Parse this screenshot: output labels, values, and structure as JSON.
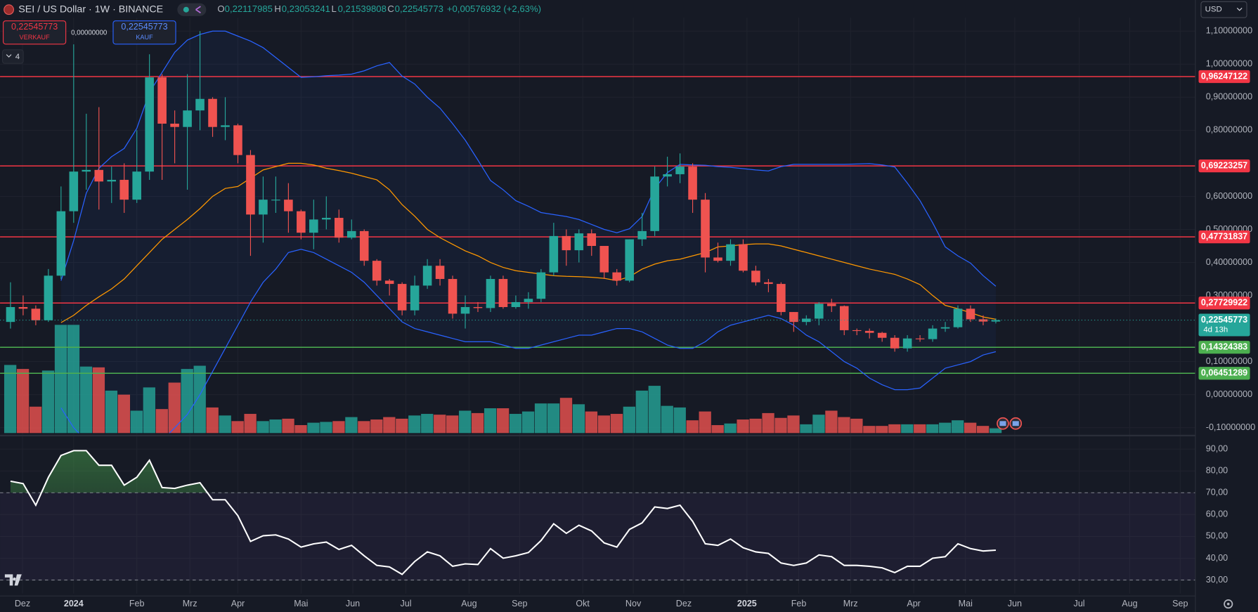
{
  "header": {
    "symbol": "SEI / US Dollar · 1W · BINANCE",
    "open_key": "O",
    "open": "0,22117985",
    "high_key": "H",
    "high": "0,23053241",
    "low_key": "L",
    "low": "0,21539808",
    "close_key": "C",
    "close": "0,22545773",
    "change": "+0,00576932 (+2,63%)"
  },
  "trade": {
    "sell_price": "0,22545773",
    "sell": "VERKAUF",
    "spread": "0,00000000",
    "buy_price": "0,22545773",
    "buy": "KAUF"
  },
  "indicators_count": "4",
  "currency": "USD",
  "chart_data": {
    "type": "candlestick",
    "up_color": "#26a69a",
    "down_color": "#ef5350",
    "open": [
      0.22,
      0.265,
      0.26,
      0.225,
      0.36,
      0.555,
      0.675,
      0.68,
      0.645,
      0.65,
      0.59,
      0.675,
      0.96,
      0.82,
      0.81,
      0.86,
      0.895,
      0.81,
      0.815,
      0.725,
      0.545,
      0.59,
      0.59,
      0.555,
      0.49,
      0.53,
      0.535,
      0.475,
      0.495,
      0.405,
      0.345,
      0.335,
      0.255,
      0.33,
      0.39,
      0.35,
      0.245,
      0.265,
      0.262,
      0.35,
      0.265,
      0.28,
      0.29,
      0.37,
      0.48,
      0.437,
      0.488,
      0.45,
      0.37,
      0.345,
      0.47,
      0.495,
      0.66,
      0.667,
      0.69,
      0.59,
      0.415,
      0.405,
      0.455,
      0.375,
      0.34,
      0.335,
      0.25,
      0.22,
      0.23,
      0.275,
      0.268,
      0.195,
      0.193,
      0.187,
      0.172,
      0.14,
      0.17,
      0.168,
      0.2,
      0.204,
      0.26,
      0.228,
      0.22117985
    ],
    "high": [
      0.34,
      0.3,
      0.27,
      0.38,
      0.63,
      1.06,
      0.85,
      0.87,
      0.69,
      0.7,
      0.8,
      1.03,
      0.97,
      0.86,
      0.97,
      1.1,
      0.9,
      0.9,
      0.82,
      0.74,
      0.66,
      0.66,
      0.64,
      0.56,
      0.59,
      0.6,
      0.56,
      0.53,
      0.5,
      0.41,
      0.35,
      0.34,
      0.36,
      0.41,
      0.41,
      0.36,
      0.3,
      0.28,
      0.36,
      0.36,
      0.3,
      0.31,
      0.38,
      0.52,
      0.5,
      0.5,
      0.5,
      0.45,
      0.38,
      0.47,
      0.55,
      0.69,
      0.72,
      0.73,
      0.7,
      0.61,
      0.46,
      0.47,
      0.47,
      0.39,
      0.35,
      0.34,
      0.25,
      0.24,
      0.28,
      0.29,
      0.27,
      0.2,
      0.2,
      0.19,
      0.18,
      0.18,
      0.18,
      0.21,
      0.22,
      0.27,
      0.27,
      0.24,
      0.23053241
    ],
    "low": [
      0.2,
      0.24,
      0.21,
      0.22,
      0.35,
      0.52,
      0.62,
      0.56,
      0.58,
      0.55,
      0.58,
      0.65,
      0.65,
      0.7,
      0.62,
      0.8,
      0.78,
      0.77,
      0.7,
      0.42,
      0.46,
      0.55,
      0.49,
      0.47,
      0.44,
      0.5,
      0.46,
      0.47,
      0.39,
      0.33,
      0.3,
      0.24,
      0.24,
      0.32,
      0.33,
      0.23,
      0.2,
      0.25,
      0.25,
      0.26,
      0.26,
      0.26,
      0.28,
      0.36,
      0.39,
      0.4,
      0.42,
      0.35,
      0.33,
      0.34,
      0.45,
      0.48,
      0.63,
      0.64,
      0.55,
      0.37,
      0.4,
      0.39,
      0.37,
      0.33,
      0.31,
      0.24,
      0.19,
      0.21,
      0.21,
      0.25,
      0.18,
      0.18,
      0.17,
      0.16,
      0.13,
      0.13,
      0.16,
      0.16,
      0.19,
      0.2,
      0.22,
      0.21,
      0.21539808
    ],
    "close": [
      0.265,
      0.26,
      0.225,
      0.36,
      0.555,
      0.675,
      0.68,
      0.645,
      0.65,
      0.59,
      0.675,
      0.96,
      0.82,
      0.81,
      0.86,
      0.895,
      0.81,
      0.815,
      0.725,
      0.545,
      0.59,
      0.59,
      0.555,
      0.49,
      0.53,
      0.535,
      0.475,
      0.495,
      0.405,
      0.345,
      0.335,
      0.255,
      0.33,
      0.39,
      0.35,
      0.245,
      0.265,
      0.262,
      0.35,
      0.265,
      0.28,
      0.29,
      0.37,
      0.48,
      0.437,
      0.488,
      0.45,
      0.37,
      0.345,
      0.47,
      0.495,
      0.66,
      0.667,
      0.69,
      0.59,
      0.415,
      0.405,
      0.455,
      0.375,
      0.34,
      0.335,
      0.25,
      0.22,
      0.23,
      0.275,
      0.268,
      0.195,
      0.193,
      0.187,
      0.172,
      0.14,
      0.17,
      0.168,
      0.2,
      0.204,
      0.26,
      0.228,
      0.22117985,
      0.22545773
    ],
    "volume": [
      85,
      80,
      33,
      78,
      135,
      135,
      83,
      82,
      53,
      48,
      28,
      57,
      30,
      63,
      80,
      84,
      32,
      22,
      15,
      24,
      15,
      17,
      18,
      10,
      13,
      14,
      15,
      20,
      15,
      17,
      20,
      18,
      22,
      24,
      23,
      22,
      28,
      25,
      31,
      31,
      24,
      27,
      37,
      37,
      44,
      36,
      27,
      22,
      24,
      33,
      53,
      59,
      34,
      32,
      16,
      27,
      10,
      12,
      17,
      18,
      25,
      19,
      22,
      11,
      23,
      28,
      20,
      18,
      9,
      9,
      11,
      11,
      11,
      11,
      13,
      16,
      13,
      9,
      6
    ],
    "bb_color": "#2962ff",
    "bb_middle_color": "#ff9800",
    "bb_upper": [
      null,
      null,
      null,
      null,
      0.345,
      0.466,
      0.61,
      0.685,
      0.72,
      0.745,
      0.806,
      0.915,
      0.975,
      1.036,
      1.073,
      1.09,
      1.1,
      1.1,
      1.085,
      1.07,
      1.05,
      1.02,
      0.99,
      0.96,
      0.962,
      0.965,
      0.967,
      0.97,
      0.98,
      0.995,
      1.005,
      0.964,
      0.94,
      0.9,
      0.867,
      0.82,
      0.77,
      0.71,
      0.648,
      0.62,
      0.587,
      0.57,
      0.551,
      0.545,
      0.539,
      0.53,
      0.515,
      0.5,
      0.49,
      0.502,
      0.539,
      0.624,
      0.672,
      0.697,
      0.695,
      0.694,
      0.69,
      0.688,
      0.684,
      0.68,
      0.677,
      0.69,
      0.697,
      0.697,
      0.697,
      0.697,
      0.697,
      0.698,
      0.699,
      0.695,
      0.689,
      0.64,
      0.587,
      0.52,
      0.447,
      0.42,
      0.398,
      0.36,
      0.328
    ],
    "bb_middle": [
      null,
      null,
      null,
      null,
      0.218,
      0.24,
      0.27,
      0.296,
      0.32,
      0.35,
      0.39,
      0.43,
      0.47,
      0.5,
      0.53,
      0.563,
      0.6,
      0.624,
      0.63,
      0.655,
      0.68,
      0.69,
      0.7,
      0.7,
      0.695,
      0.685,
      0.678,
      0.67,
      0.66,
      0.65,
      0.62,
      0.575,
      0.54,
      0.5,
      0.475,
      0.455,
      0.435,
      0.42,
      0.4,
      0.385,
      0.375,
      0.37,
      0.365,
      0.36,
      0.358,
      0.357,
      0.355,
      0.352,
      0.345,
      0.357,
      0.38,
      0.395,
      0.405,
      0.41,
      0.42,
      0.43,
      0.447,
      0.45,
      0.454,
      0.456,
      0.456,
      0.45,
      0.44,
      0.43,
      0.42,
      0.41,
      0.4,
      0.39,
      0.38,
      0.372,
      0.364,
      0.35,
      0.333,
      0.3,
      0.27,
      0.26,
      0.248,
      0.235,
      0.228
    ],
    "bb_lower": [
      null,
      null,
      null,
      null,
      -0.04,
      -0.1,
      -0.14,
      -0.16,
      -0.17,
      -0.17,
      -0.16,
      -0.16,
      -0.14,
      -0.1,
      -0.06,
      0,
      0.07,
      0.14,
      0.21,
      0.28,
      0.34,
      0.38,
      0.43,
      0.44,
      0.43,
      0.41,
      0.39,
      0.37,
      0.34,
      0.3,
      0.26,
      0.22,
      0.2,
      0.19,
      0.18,
      0.17,
      0.16,
      0.16,
      0.16,
      0.15,
      0.14,
      0.14,
      0.15,
      0.16,
      0.17,
      0.18,
      0.18,
      0.19,
      0.2,
      0.2,
      0.19,
      0.17,
      0.15,
      0.14,
      0.14,
      0.16,
      0.19,
      0.21,
      0.22,
      0.23,
      0.24,
      0.23,
      0.21,
      0.18,
      0.16,
      0.13,
      0.1,
      0.08,
      0.05,
      0.03,
      0.015,
      0.015,
      0.02,
      0.05,
      0.08,
      0.09,
      0.1,
      0.12,
      0.13
    ],
    "rsi": [
      75.3,
      74.2,
      64.3,
      77.1,
      87.1,
      89.3,
      89.3,
      82.6,
      82.6,
      73.5,
      77.1,
      84.9,
      72.4,
      72,
      73.5,
      74.6,
      66.8,
      66.8,
      59.5,
      47.7,
      50.3,
      50.7,
      48.8,
      45.1,
      46.6,
      47.4,
      44,
      45.9,
      41.1,
      36.7,
      36,
      32.6,
      38.5,
      42.9,
      41.1,
      36.3,
      37.4,
      37.1,
      44.4,
      40,
      41.1,
      42.6,
      48.1,
      55.8,
      51.4,
      55.1,
      52.5,
      47,
      45.1,
      53.2,
      56.2,
      63.5,
      62.8,
      64.3,
      56.9,
      46.6,
      45.9,
      48.8,
      44.8,
      42.9,
      42.2,
      37.8,
      36.7,
      37.8,
      41.5,
      40.7,
      36.7,
      36.7,
      36.3,
      35.6,
      33.4,
      36.3,
      36.3,
      40,
      40.7,
      46.6,
      44.4,
      43.3,
      43.7
    ],
    "rsi_color": "#ffffff",
    "xlim": [
      -0.83,
      93.8
    ],
    "xticks": [
      {
        "value": 0.95,
        "label": "Dez"
      },
      {
        "value": 5.0,
        "label": "2024"
      },
      {
        "value": 10.0,
        "label": "Feb"
      },
      {
        "value": 14.2,
        "label": "Mrz"
      },
      {
        "value": 18.0,
        "label": "Apr"
      },
      {
        "value": 23.0,
        "label": "Mai"
      },
      {
        "value": 27.1,
        "label": "Jun"
      },
      {
        "value": 31.3,
        "label": "Jul"
      },
      {
        "value": 36.3,
        "label": "Aug"
      },
      {
        "value": 40.3,
        "label": "Sep"
      },
      {
        "value": 45.3,
        "label": "Okt"
      },
      {
        "value": 49.3,
        "label": "Nov"
      },
      {
        "value": 53.3,
        "label": "Dez"
      },
      {
        "value": 58.3,
        "label": "2025"
      },
      {
        "value": 62.4,
        "label": "Feb"
      },
      {
        "value": 66.5,
        "label": "Mrz"
      },
      {
        "value": 71.5,
        "label": "Apr"
      },
      {
        "value": 75.6,
        "label": "Mai"
      },
      {
        "value": 79.5,
        "label": "Jun"
      },
      {
        "value": 84.6,
        "label": "Jul"
      },
      {
        "value": 88.6,
        "label": "Aug"
      },
      {
        "value": 92.6,
        "label": "Sep"
      }
    ],
    "ylim": [
      -0.1165,
      1.1408
    ],
    "yticks": [
      {
        "value": 1.1,
        "label": "1,10000000"
      },
      {
        "value": 1.0,
        "label": "1,00000000"
      },
      {
        "value": 0.9,
        "label": "0,90000000"
      },
      {
        "value": 0.8,
        "label": "0,80000000"
      },
      {
        "value": 0.6,
        "label": "0,60000000"
      },
      {
        "value": 0.5,
        "label": "0,50000000"
      },
      {
        "value": 0.4,
        "label": "0,40000000"
      },
      {
        "value": 0.3,
        "label": "0,30000000"
      },
      {
        "value": 0.1,
        "label": "0,10000000"
      },
      {
        "value": 0,
        "label": "0,00000000"
      },
      {
        "value": -0.1,
        "label": "-0,10000000"
      }
    ],
    "levels": [
      {
        "value": 0.96247122,
        "label": "0,96247122",
        "color": "#f23645"
      },
      {
        "value": 0.69223257,
        "label": "0,69223257",
        "color": "#f23645"
      },
      {
        "value": 0.47731837,
        "label": "0,47731837",
        "color": "#f23645"
      },
      {
        "value": 0.27729922,
        "label": "0,27729922",
        "color": "#f23645"
      },
      {
        "value": 0.14324383,
        "label": "0,14324383",
        "color": "#4caf50"
      },
      {
        "value": 0.06451289,
        "label": "0,06451289",
        "color": "#4caf50"
      }
    ],
    "last_price": {
      "value": 0.22545773,
      "label": "0,22545773",
      "countdown": "4d 13h",
      "color": "#26a69a"
    },
    "rsi_ylim": [
      23.8,
      95.5
    ],
    "rsi_yticks": [
      {
        "value": 90,
        "label": "90,00"
      },
      {
        "value": 80,
        "label": "80,00"
      },
      {
        "value": 70,
        "label": "70,00"
      },
      {
        "value": 60,
        "label": "60,00"
      },
      {
        "value": 50,
        "label": "50,00"
      },
      {
        "value": 40,
        "label": "40,00"
      },
      {
        "value": 30,
        "label": "30,00"
      }
    ],
    "rsi_levels": [
      70,
      30
    ],
    "grid": true
  }
}
